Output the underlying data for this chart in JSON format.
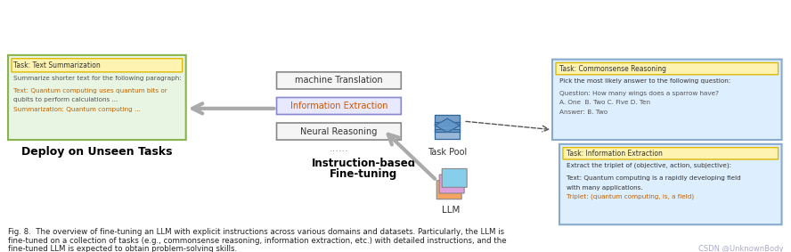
{
  "fig_width": 8.88,
  "fig_height": 2.83,
  "bg_color": "#ffffff",
  "caption_line1": "Fig. 8.  The overview of fine-tuning an LLM with explicit instructions across various domains and datasets. Particularly, the LLM is",
  "caption_line2": "fine-tuned on a collection of tasks (e.g., commonsense reasoning, information extraction, etc.) with detailed instructions, and the",
  "caption_line3": "fine-tuned LLM is expected to obtain problem-solving skills.",
  "watermark": "CSDN @UnknownBody",
  "left_box_title": "Task: Text Summarization",
  "left_box_lines": [
    "Summarize shorter text for the following paragraph:",
    "",
    "Text: Quantum computing uses quantum bits or",
    "qubits to perform calculations ...",
    "Summarization: Quantum computing ..."
  ],
  "left_label": "Deploy on Unseen Tasks",
  "mid_tasks": [
    "machine Translation",
    "Information Extraction",
    "Neural Reasoning"
  ],
  "mid_dots": "......",
  "task_pool_label": "Task Pool",
  "llm_label": "LLM",
  "instruction_label1": "Instruction-based",
  "instruction_label2": "Fine-tuning",
  "top_right_title": "Task: Commonsense Reasoning",
  "top_right_lines": [
    "Pick the most likely answer to the following question:",
    "",
    "Question: How many wings does a sparrow have?",
    "A. One  B. Two C. Five D. Ten",
    "Answer: B. Two"
  ],
  "bottom_right_title": "Task: Information Extraction",
  "bottom_right_lines": [
    "Extract the triplet of (objective, action, subjective):",
    "",
    "Text: Quantum computing is a rapidly developing field",
    "with many applications.",
    "Triplet: (quantum computing, is, a field)"
  ]
}
